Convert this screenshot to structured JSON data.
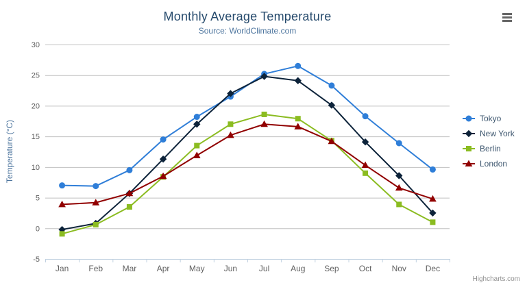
{
  "chart_data": {
    "type": "line",
    "title": "Monthly Average Temperature",
    "subtitle": "Source: WorldClimate.com",
    "xlabel": "",
    "ylabel": "Temperature (°C)",
    "ylim": [
      -5,
      30
    ],
    "ytick_interval": 5,
    "grid": true,
    "legend_position": "right",
    "categories": [
      "Jan",
      "Feb",
      "Mar",
      "Apr",
      "May",
      "Jun",
      "Jul",
      "Aug",
      "Sep",
      "Oct",
      "Nov",
      "Dec"
    ],
    "series": [
      {
        "name": "Tokyo",
        "color": "#2f7ed8",
        "marker": "circle",
        "values": [
          7.0,
          6.9,
          9.5,
          14.5,
          18.2,
          21.5,
          25.2,
          26.5,
          23.3,
          18.3,
          13.9,
          9.6
        ]
      },
      {
        "name": "New York",
        "color": "#0d233a",
        "marker": "diamond",
        "values": [
          -0.2,
          0.8,
          5.7,
          11.3,
          17.0,
          22.0,
          24.8,
          24.1,
          20.1,
          14.1,
          8.6,
          2.5
        ]
      },
      {
        "name": "Berlin",
        "color": "#8bbc21",
        "marker": "square",
        "values": [
          -0.9,
          0.6,
          3.5,
          8.4,
          13.5,
          17.0,
          18.6,
          17.9,
          14.3,
          9.0,
          3.9,
          1.0
        ]
      },
      {
        "name": "London",
        "color": "#910000",
        "marker": "triangle",
        "values": [
          3.9,
          4.2,
          5.7,
          8.5,
          11.9,
          15.2,
          17.0,
          16.6,
          14.2,
          10.3,
          6.6,
          4.8
        ]
      }
    ]
  },
  "colors": {
    "title_text": "#274b6d",
    "subtitle_text": "#4d759e",
    "axis_title_text": "#4d759e",
    "tick_label_text": "#606060",
    "grid_line": "#c0c0c0",
    "axis_line": "#c0d0e0",
    "legend_text": "#3e576f",
    "credit_text": "#909090",
    "menu_icon": "#666666",
    "background": "#ffffff"
  },
  "credits": {
    "text": "Highcharts.com"
  },
  "export_menu": {
    "icon": "hamburger-icon"
  }
}
